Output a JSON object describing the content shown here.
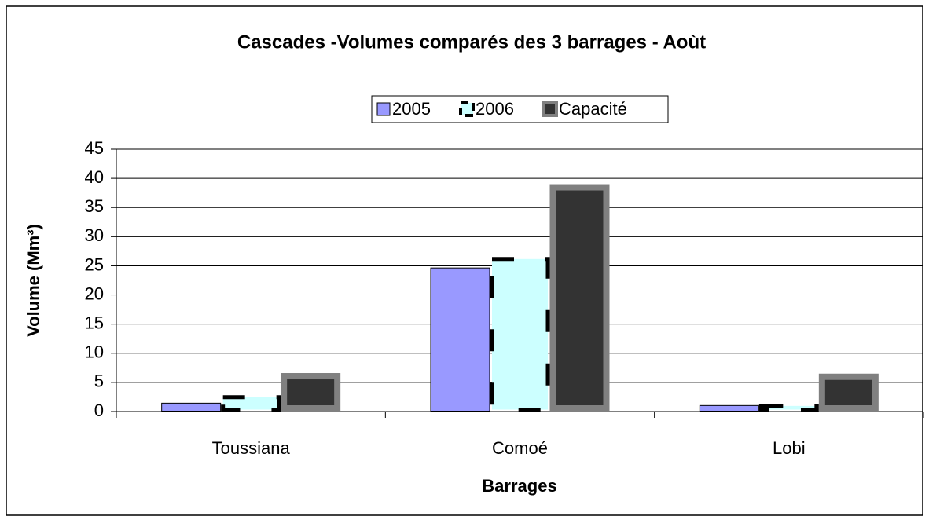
{
  "chart_data": {
    "type": "bar",
    "title": "Cascades -Volumes comparés des 3 barrages - Aoùt",
    "x_label": "Barrages",
    "y_label": "Volume (Mm³)",
    "categories": [
      "Toussiana",
      "Comoé",
      "Lobi"
    ],
    "series": [
      {
        "name": "2005",
        "color": "#9999ff",
        "border": "#000000",
        "values": [
          1.5,
          24.7,
          1.1
        ]
      },
      {
        "name": "2006",
        "color": "#ccffff",
        "border": "#000000",
        "values": [
          2.8,
          26.5,
          1.3
        ]
      },
      {
        "name": "Capacité",
        "color": "#333333",
        "border": "#808080",
        "values": [
          6.6,
          39,
          6.5
        ]
      }
    ],
    "ylim": [
      0,
      45
    ],
    "yticks": [
      0,
      5,
      10,
      15,
      20,
      25,
      30,
      35,
      40,
      45
    ],
    "grid": true,
    "legend": "top"
  }
}
